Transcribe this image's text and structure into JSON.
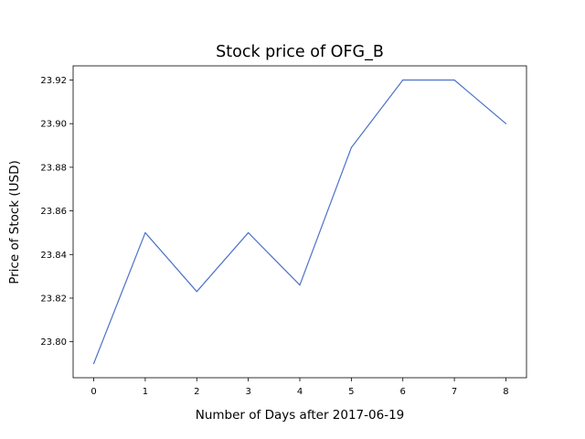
{
  "chart_data": {
    "type": "line",
    "title": "Stock price of OFG_B",
    "xlabel": "Number of Days after 2017-06-19",
    "ylabel": "Price of Stock (USD)",
    "x": [
      0,
      1,
      2,
      3,
      4,
      5,
      6,
      7,
      8
    ],
    "series": [
      {
        "values": [
          23.79,
          23.85,
          23.823,
          23.85,
          23.826,
          23.889,
          23.92,
          23.92,
          23.9
        ]
      }
    ],
    "xticks": [
      "0",
      "1",
      "2",
      "3",
      "4",
      "5",
      "6",
      "7",
      "8"
    ],
    "yticks": [
      "23.80",
      "23.82",
      "23.84",
      "23.86",
      "23.88",
      "23.90",
      "23.92"
    ],
    "xlim": [
      -0.4,
      8.4
    ],
    "ylim": [
      23.7835,
      23.9265
    ],
    "grid": false,
    "colors": {
      "line": "#4c72c9",
      "axes": "#000000"
    }
  }
}
